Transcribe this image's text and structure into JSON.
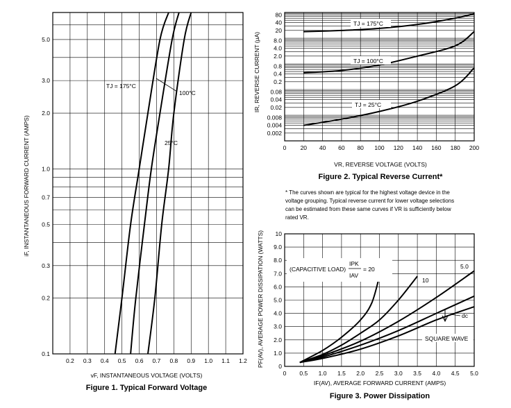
{
  "chart_data": [
    {
      "type": "line",
      "title": "Figure 1. Typical Forward Voltage",
      "xlabel": "vF, INSTANTANEOUS VOLTAGE (VOLTS)",
      "ylabel": "iF, INSTANTANEOUS FORWARD CURRENT (AMPS)",
      "y_scale": "log",
      "xlim": [
        0.1,
        1.2
      ],
      "ylim": [
        0.1,
        7
      ],
      "x_ticks": [
        "0.2",
        "0.3",
        "0.4",
        "0.5",
        "0.6",
        "0.7",
        "0.8",
        "0.9",
        "1.0",
        "1.1",
        "1.2"
      ],
      "x_tick_values": [
        0.2,
        0.3,
        0.4,
        0.5,
        0.6,
        0.7,
        0.8,
        0.9,
        1.0,
        1.1,
        1.2
      ],
      "y_ticks": [
        "5.0",
        "3.0",
        "2.0",
        "1.0",
        "0.7",
        "0.5",
        "0.3",
        "0.2",
        "0.1"
      ],
      "y_tick_values": [
        5,
        3,
        2,
        1,
        0.7,
        0.5,
        0.3,
        0.2,
        0.1
      ],
      "grid": true,
      "series": [
        {
          "name": "TJ = 175°C",
          "points": [
            [
              0.46,
              0.1
            ],
            [
              0.5,
              0.2
            ],
            [
              0.55,
              0.5
            ],
            [
              0.6,
              1.0
            ],
            [
              0.65,
              2.0
            ],
            [
              0.72,
              5.0
            ],
            [
              0.77,
              7.0
            ]
          ]
        },
        {
          "name": "100°C",
          "points": [
            [
              0.55,
              0.1
            ],
            [
              0.58,
              0.2
            ],
            [
              0.63,
              0.5
            ],
            [
              0.67,
              1.0
            ],
            [
              0.72,
              2.0
            ],
            [
              0.79,
              5.0
            ],
            [
              0.83,
              7.0
            ]
          ]
        },
        {
          "name": "25°C",
          "points": [
            [
              0.65,
              0.1
            ],
            [
              0.69,
              0.2
            ],
            [
              0.73,
              0.5
            ],
            [
              0.77,
              1.0
            ],
            [
              0.8,
              2.0
            ],
            [
              0.86,
              5.0
            ],
            [
              0.9,
              7.0
            ]
          ]
        }
      ],
      "annotations": [
        "TJ = 175°C",
        "100°C",
        "25°C"
      ]
    },
    {
      "type": "line",
      "title": "Figure 2. Typical Reverse Current*",
      "xlabel": "VR, REVERSE VOLTAGE (VOLTS)",
      "ylabel": "IR, REVERSE CURRENT (µA)",
      "y_scale": "log",
      "xlim": [
        0,
        200
      ],
      "ylim": [
        0.001,
        100
      ],
      "x_ticks": [
        "0",
        "20",
        "40",
        "60",
        "80",
        "100",
        "120",
        "140",
        "160",
        "180",
        "200"
      ],
      "x_tick_values": [
        0,
        20,
        40,
        60,
        80,
        100,
        120,
        140,
        160,
        180,
        200
      ],
      "y_ticks": [
        "80",
        "40",
        "20",
        "8.0",
        "4.0",
        "2.0",
        "0.8",
        "0.4",
        "0.2",
        "0.08",
        "0.04",
        "0.02",
        "0.008",
        "0.004",
        "0.002"
      ],
      "y_tick_values": [
        80,
        40,
        20,
        8,
        4,
        2,
        0.8,
        0.4,
        0.2,
        0.08,
        0.04,
        0.02,
        0.008,
        0.004,
        0.002
      ],
      "grid": true,
      "series": [
        {
          "name": "TJ = 175°C",
          "points": [
            [
              20,
              18
            ],
            [
              60,
              20
            ],
            [
              100,
              24
            ],
            [
              140,
              34
            ],
            [
              180,
              60
            ],
            [
              200,
              90
            ]
          ]
        },
        {
          "name": "TJ = 100°C",
          "points": [
            [
              20,
              0.45
            ],
            [
              60,
              0.55
            ],
            [
              100,
              0.9
            ],
            [
              140,
              2.0
            ],
            [
              180,
              5.0
            ],
            [
              200,
              18
            ]
          ]
        },
        {
          "name": "TJ = 25°C",
          "points": [
            [
              20,
              0.004
            ],
            [
              60,
              0.007
            ],
            [
              100,
              0.014
            ],
            [
              140,
              0.035
            ],
            [
              180,
              0.14
            ],
            [
              200,
              0.7
            ]
          ]
        }
      ],
      "annotations": [
        "TJ = 175°C",
        "TJ = 100°C",
        "TJ = 25°C"
      ],
      "footnote": [
        "* The curves shown are typical for the highest voltage device in the",
        "voltage grouping. Typical reverse current for lower voltage selections",
        "can be estimated from these same curves if VR is sufficiently below",
        "rated VR."
      ]
    },
    {
      "type": "line",
      "title": "Figure 3. Power Dissipation",
      "xlabel": "IF(AV), AVERAGE FORWARD CURRENT (AMPS)",
      "ylabel": "PF(AV), AVERAGE POWER DISSIPATION (WATTS)",
      "xlim": [
        0,
        5.0
      ],
      "ylim": [
        0,
        10
      ],
      "x_ticks": [
        "0",
        "0.5",
        "1.0",
        "1.5",
        "2.0",
        "2.5",
        "3.0",
        "3.5",
        "4.0",
        "4.5",
        "5.0"
      ],
      "x_tick_values": [
        0,
        0.5,
        1.0,
        1.5,
        2.0,
        2.5,
        3.0,
        3.5,
        4.0,
        4.5,
        5.0
      ],
      "y_ticks": [
        "0",
        "1.0",
        "2.0",
        "3.0",
        "4.0",
        "5.0",
        "6.0",
        "7.0",
        "8.0",
        "9.0",
        "10"
      ],
      "y_tick_values": [
        0,
        1,
        2,
        3,
        4,
        5,
        6,
        7,
        8,
        9,
        10
      ],
      "grid": true,
      "series": [
        {
          "name": "20",
          "points": [
            [
              0.4,
              0.3
            ],
            [
              1.0,
              1.2
            ],
            [
              1.5,
              2.2
            ],
            [
              2.0,
              3.5
            ],
            [
              2.3,
              4.8
            ],
            [
              2.5,
              6.8
            ]
          ]
        },
        {
          "name": "10",
          "points": [
            [
              0.4,
              0.3
            ],
            [
              1.0,
              0.9
            ],
            [
              1.5,
              1.6
            ],
            [
              2.0,
              2.5
            ],
            [
              2.5,
              3.5
            ],
            [
              3.0,
              5.0
            ],
            [
              3.5,
              6.8
            ]
          ]
        },
        {
          "name": "5.0",
          "points": [
            [
              0.4,
              0.3
            ],
            [
              1.0,
              0.8
            ],
            [
              2.0,
              1.9
            ],
            [
              3.0,
              3.4
            ],
            [
              4.0,
              5.2
            ],
            [
              5.0,
              7.2
            ]
          ]
        },
        {
          "name": "dc",
          "points": [
            [
              0.4,
              0.3
            ],
            [
              1.0,
              0.6
            ],
            [
              2.0,
              1.3
            ],
            [
              3.0,
              2.3
            ],
            [
              4.0,
              3.5
            ],
            [
              5.0,
              4.5
            ]
          ]
        },
        {
          "name": "SQUARE WAVE",
          "points": [
            [
              0.4,
              0.3
            ],
            [
              1.0,
              0.7
            ],
            [
              2.0,
              1.6
            ],
            [
              3.0,
              2.7
            ],
            [
              4.0,
              4.0
            ],
            [
              5.0,
              5.3
            ]
          ]
        }
      ],
      "annotations": [
        "(CAPACITIVE LOAD)",
        "IPK",
        "IAV",
        "= 20",
        "10",
        "5.0",
        "dc",
        "SQUARE WAVE"
      ]
    }
  ]
}
